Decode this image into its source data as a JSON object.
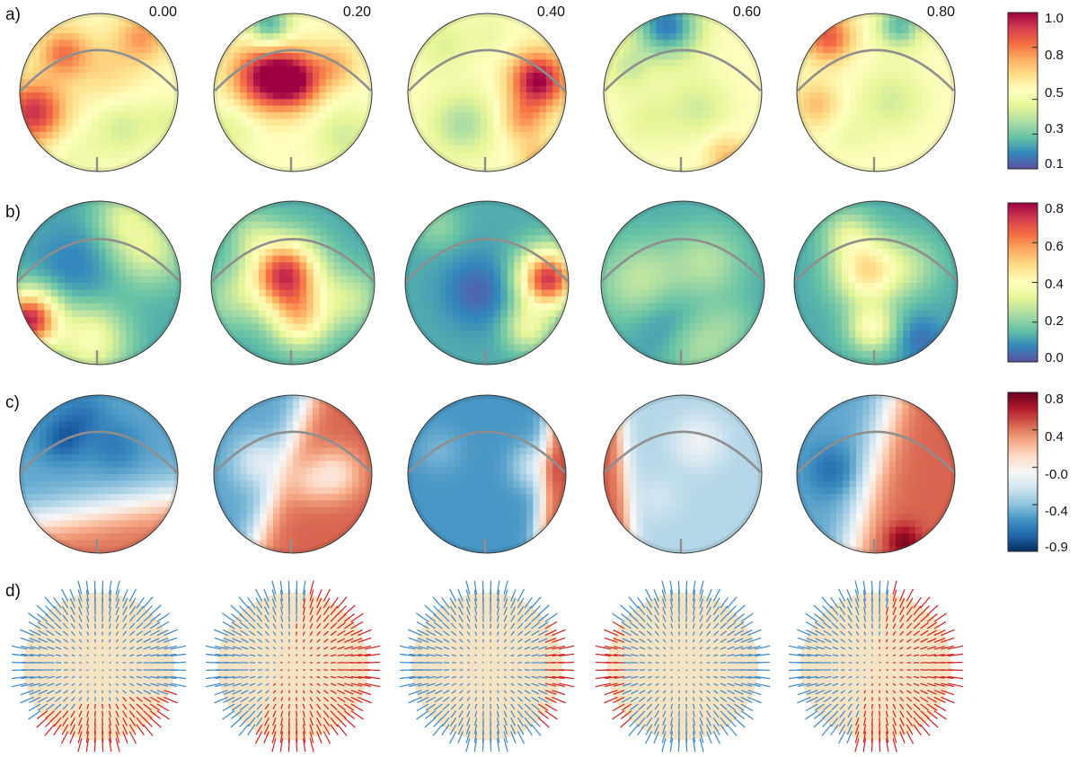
{
  "figure": {
    "phases": [
      "0.00",
      "0.20",
      "0.40",
      "0.60",
      "0.80"
    ],
    "rows": [
      {
        "label": "a)",
        "id": "a"
      },
      {
        "label": "b)",
        "id": "b"
      },
      {
        "label": "c)",
        "id": "c"
      },
      {
        "label": "d)",
        "id": "d"
      }
    ]
  },
  "chart_data": [
    {
      "type": "heatmap",
      "panel": "a)",
      "x": [
        "0.00",
        "0.20",
        "0.40",
        "0.60",
        "0.80"
      ],
      "colormap": [
        "#5e4fa2",
        "#3288bd",
        "#66c2a5",
        "#abdda4",
        "#e6f598",
        "#ffffbf",
        "#fee08b",
        "#fdae61",
        "#f46d43",
        "#d53e4f",
        "#9e0142"
      ],
      "range": [
        0.1,
        1.0
      ],
      "colorbar_ticks": [
        "1.0",
        "0.8",
        "0.5",
        "0.3",
        "0.1"
      ],
      "colorbar_values": [
        1.0,
        0.8,
        0.5,
        0.3,
        0.1
      ],
      "background_value": 0.55,
      "spots": [
        [
          {
            "u": -0.82,
            "v": 0.25,
            "r": 0.28,
            "a": 0.38
          },
          {
            "u": -0.45,
            "v": -0.5,
            "r": 0.22,
            "a": 0.25
          },
          {
            "u": 0.55,
            "v": -0.7,
            "r": 0.22,
            "a": 0.2
          },
          {
            "u": 0.1,
            "v": -0.3,
            "r": 0.3,
            "a": 0.1
          },
          {
            "u": 0.3,
            "v": 0.45,
            "r": 0.25,
            "a": -0.12
          },
          {
            "u": -0.3,
            "v": 0.75,
            "r": 0.25,
            "a": -0.06
          },
          {
            "u": 0.85,
            "v": 0.35,
            "r": 0.2,
            "a": -0.08
          }
        ],
        [
          {
            "u": -0.35,
            "v": -0.2,
            "r": 0.3,
            "a": 0.42
          },
          {
            "u": 0.05,
            "v": -0.15,
            "r": 0.25,
            "a": 0.35
          },
          {
            "u": 0.55,
            "v": -0.35,
            "r": 0.2,
            "a": 0.15
          },
          {
            "u": -0.3,
            "v": -0.85,
            "r": 0.2,
            "a": -0.32
          },
          {
            "u": 0.65,
            "v": 0.55,
            "r": 0.28,
            "a": -0.12
          },
          {
            "u": -0.8,
            "v": 0.45,
            "r": 0.25,
            "a": -0.1
          }
        ],
        [
          {
            "u": 0.65,
            "v": -0.15,
            "r": 0.25,
            "a": 0.45
          },
          {
            "u": 0.45,
            "v": 0.35,
            "r": 0.2,
            "a": 0.18
          },
          {
            "u": -0.3,
            "v": 0.4,
            "r": 0.3,
            "a": -0.18
          },
          {
            "u": -0.55,
            "v": -0.6,
            "r": 0.25,
            "a": -0.1
          },
          {
            "u": 0.65,
            "v": 0.85,
            "r": 0.18,
            "a": 0.15
          },
          {
            "u": 0.05,
            "v": -0.75,
            "r": 0.2,
            "a": -0.06
          }
        ],
        [
          {
            "u": -0.2,
            "v": -0.85,
            "r": 0.3,
            "a": -0.38
          },
          {
            "u": -0.7,
            "v": -0.3,
            "r": 0.2,
            "a": -0.12
          },
          {
            "u": 0.2,
            "v": 0.2,
            "r": 0.3,
            "a": -0.12
          },
          {
            "u": 0.55,
            "v": 0.8,
            "r": 0.2,
            "a": 0.15
          },
          {
            "u": -0.45,
            "v": 0.35,
            "r": 0.25,
            "a": -0.08
          }
        ],
        [
          {
            "u": -0.6,
            "v": -0.7,
            "r": 0.22,
            "a": 0.3
          },
          {
            "u": -0.75,
            "v": 0.15,
            "r": 0.2,
            "a": 0.15
          },
          {
            "u": 0.3,
            "v": -0.85,
            "r": 0.2,
            "a": -0.28
          },
          {
            "u": 0.2,
            "v": 0.1,
            "r": 0.3,
            "a": -0.12
          },
          {
            "u": -0.3,
            "v": 0.55,
            "r": 0.2,
            "a": -0.05
          }
        ]
      ]
    },
    {
      "type": "heatmap",
      "panel": "b)",
      "x": [
        "0.00",
        "0.20",
        "0.40",
        "0.60",
        "0.80"
      ],
      "colormap": [
        "#5e4fa2",
        "#3288bd",
        "#66c2a5",
        "#abdda4",
        "#e6f598",
        "#ffffbf",
        "#fee08b",
        "#fdae61",
        "#f46d43",
        "#d53e4f",
        "#9e0142"
      ],
      "range": [
        0.0,
        0.8
      ],
      "colorbar_ticks": [
        "0.8",
        "0.6",
        "0.4",
        "0.2",
        "0.0"
      ],
      "colorbar_values": [
        0.8,
        0.6,
        0.4,
        0.2,
        0.0
      ],
      "background_value": 0.13,
      "spots": [
        [
          {
            "u": -0.85,
            "v": 0.45,
            "r": 0.25,
            "a": 0.62
          },
          {
            "u": -0.1,
            "v": 0.7,
            "r": 0.3,
            "a": 0.25
          },
          {
            "u": 0.6,
            "v": -0.4,
            "r": 0.3,
            "a": 0.18
          },
          {
            "u": 0.3,
            "v": -0.8,
            "r": 0.25,
            "a": 0.15
          },
          {
            "u": -0.3,
            "v": -0.2,
            "r": 0.35,
            "a": -0.06
          }
        ],
        [
          {
            "u": -0.1,
            "v": -0.1,
            "r": 0.3,
            "a": 0.6
          },
          {
            "u": 0.1,
            "v": 0.45,
            "r": 0.25,
            "a": 0.3
          },
          {
            "u": -0.75,
            "v": 0.2,
            "r": 0.25,
            "a": 0.1
          },
          {
            "u": 0.7,
            "v": 0.2,
            "r": 0.25,
            "a": 0.15
          },
          {
            "u": -0.5,
            "v": -0.6,
            "r": 0.2,
            "a": 0.1
          }
        ],
        [
          {
            "u": 0.75,
            "v": -0.05,
            "r": 0.25,
            "a": 0.6
          },
          {
            "u": 0.5,
            "v": 0.55,
            "r": 0.2,
            "a": 0.2
          },
          {
            "u": -0.1,
            "v": 0.1,
            "r": 0.3,
            "a": -0.1
          },
          {
            "u": -0.6,
            "v": -0.7,
            "r": 0.2,
            "a": 0.08
          }
        ],
        [
          {
            "u": -0.5,
            "v": 0.0,
            "r": 0.35,
            "a": 0.15
          },
          {
            "u": 0.3,
            "v": -0.25,
            "r": 0.3,
            "a": 0.12
          },
          {
            "u": 0.2,
            "v": 0.75,
            "r": 0.3,
            "a": 0.12
          },
          {
            "u": -0.2,
            "v": 0.45,
            "r": 0.3,
            "a": -0.08
          },
          {
            "u": 0.6,
            "v": 0.5,
            "r": 0.2,
            "a": 0.05
          }
        ],
        [
          {
            "u": -0.1,
            "v": -0.15,
            "r": 0.28,
            "a": 0.35
          },
          {
            "u": -0.05,
            "v": 0.55,
            "r": 0.2,
            "a": 0.25
          },
          {
            "u": -0.35,
            "v": -0.6,
            "r": 0.2,
            "a": 0.15
          },
          {
            "u": 0.55,
            "v": 0.7,
            "r": 0.2,
            "a": -0.08
          },
          {
            "u": 0.45,
            "v": -0.2,
            "r": 0.25,
            "a": 0.1
          }
        ]
      ]
    },
    {
      "type": "heatmap",
      "panel": "c)",
      "x": [
        "0.00",
        "0.20",
        "0.40",
        "0.60",
        "0.80"
      ],
      "colormap": [
        "#053061",
        "#2166ac",
        "#4393c3",
        "#92c5de",
        "#d1e5f0",
        "#f7f7f7",
        "#fddbc7",
        "#f4a582",
        "#d6604d",
        "#b2182b",
        "#67001f"
      ],
      "range": [
        -0.9,
        0.8
      ],
      "colorbar_ticks": [
        "0.8",
        "0.4",
        "-0.0",
        "-0.4",
        "-0.9"
      ],
      "colorbar_values": [
        0.8,
        0.4,
        0.0,
        -0.4,
        -0.9
      ],
      "base_sides": [
        {
          "neg": -0.5,
          "pos": 0.43,
          "angle_deg": 80,
          "offset": 0.45,
          "width": 0.28
        },
        {
          "neg": -0.5,
          "pos": 0.45,
          "angle_deg": 20,
          "offset": -0.15,
          "width": 0.2
        },
        {
          "neg": -0.55,
          "pos": 0.45,
          "angle_deg": 5,
          "offset": 0.72,
          "width": 0.12
        },
        {
          "neg": -0.3,
          "pos": 0.45,
          "angle_deg": 175,
          "offset": 0.72,
          "width": 0.12
        },
        {
          "neg": -0.5,
          "pos": 0.45,
          "angle_deg": 15,
          "offset": -0.05,
          "width": 0.25
        }
      ],
      "spots": [
        [
          {
            "u": -0.45,
            "v": -0.45,
            "r": 0.2,
            "a": -0.25
          },
          {
            "u": 0.2,
            "v": -0.35,
            "r": 0.22,
            "a": -0.15
          },
          {
            "u": -0.2,
            "v": -0.75,
            "r": 0.2,
            "a": -0.15
          }
        ],
        [
          {
            "u": -0.45,
            "v": -0.15,
            "r": 0.22,
            "a": 0.3
          },
          {
            "u": 0.55,
            "v": 0.0,
            "r": 0.22,
            "a": -0.35
          },
          {
            "u": 0.2,
            "v": 0.1,
            "r": 0.2,
            "a": -0.2
          }
        ],
        [
          {
            "u": 0.6,
            "v": -0.1,
            "r": 0.2,
            "a": 0.3
          },
          {
            "u": -0.6,
            "v": -0.3,
            "r": 0.2,
            "a": 0.1
          }
        ],
        [
          {
            "u": 0.2,
            "v": -0.4,
            "r": 0.22,
            "a": 0.2
          },
          {
            "u": -0.3,
            "v": 0.3,
            "r": 0.2,
            "a": 0.08
          }
        ],
        [
          {
            "u": -0.55,
            "v": -0.05,
            "r": 0.22,
            "a": -0.2
          },
          {
            "u": 0.35,
            "v": 0.85,
            "r": 0.15,
            "a": 0.3
          }
        ]
      ]
    },
    {
      "type": "scatter",
      "panel": "d)",
      "x": [
        "0.00",
        "0.20",
        "0.40",
        "0.60",
        "0.80"
      ],
      "series": [
        {
          "polarity": "negative",
          "color": "#3a86c8"
        },
        {
          "polarity": "positive",
          "color": "#d01c1c"
        }
      ],
      "disk_color": "#f6e3c3",
      "boundary_angle_deg": [
        80,
        20,
        5,
        175,
        15
      ],
      "boundary_offset": [
        0.45,
        -0.15,
        0.72,
        0.72,
        -0.05
      ]
    }
  ]
}
